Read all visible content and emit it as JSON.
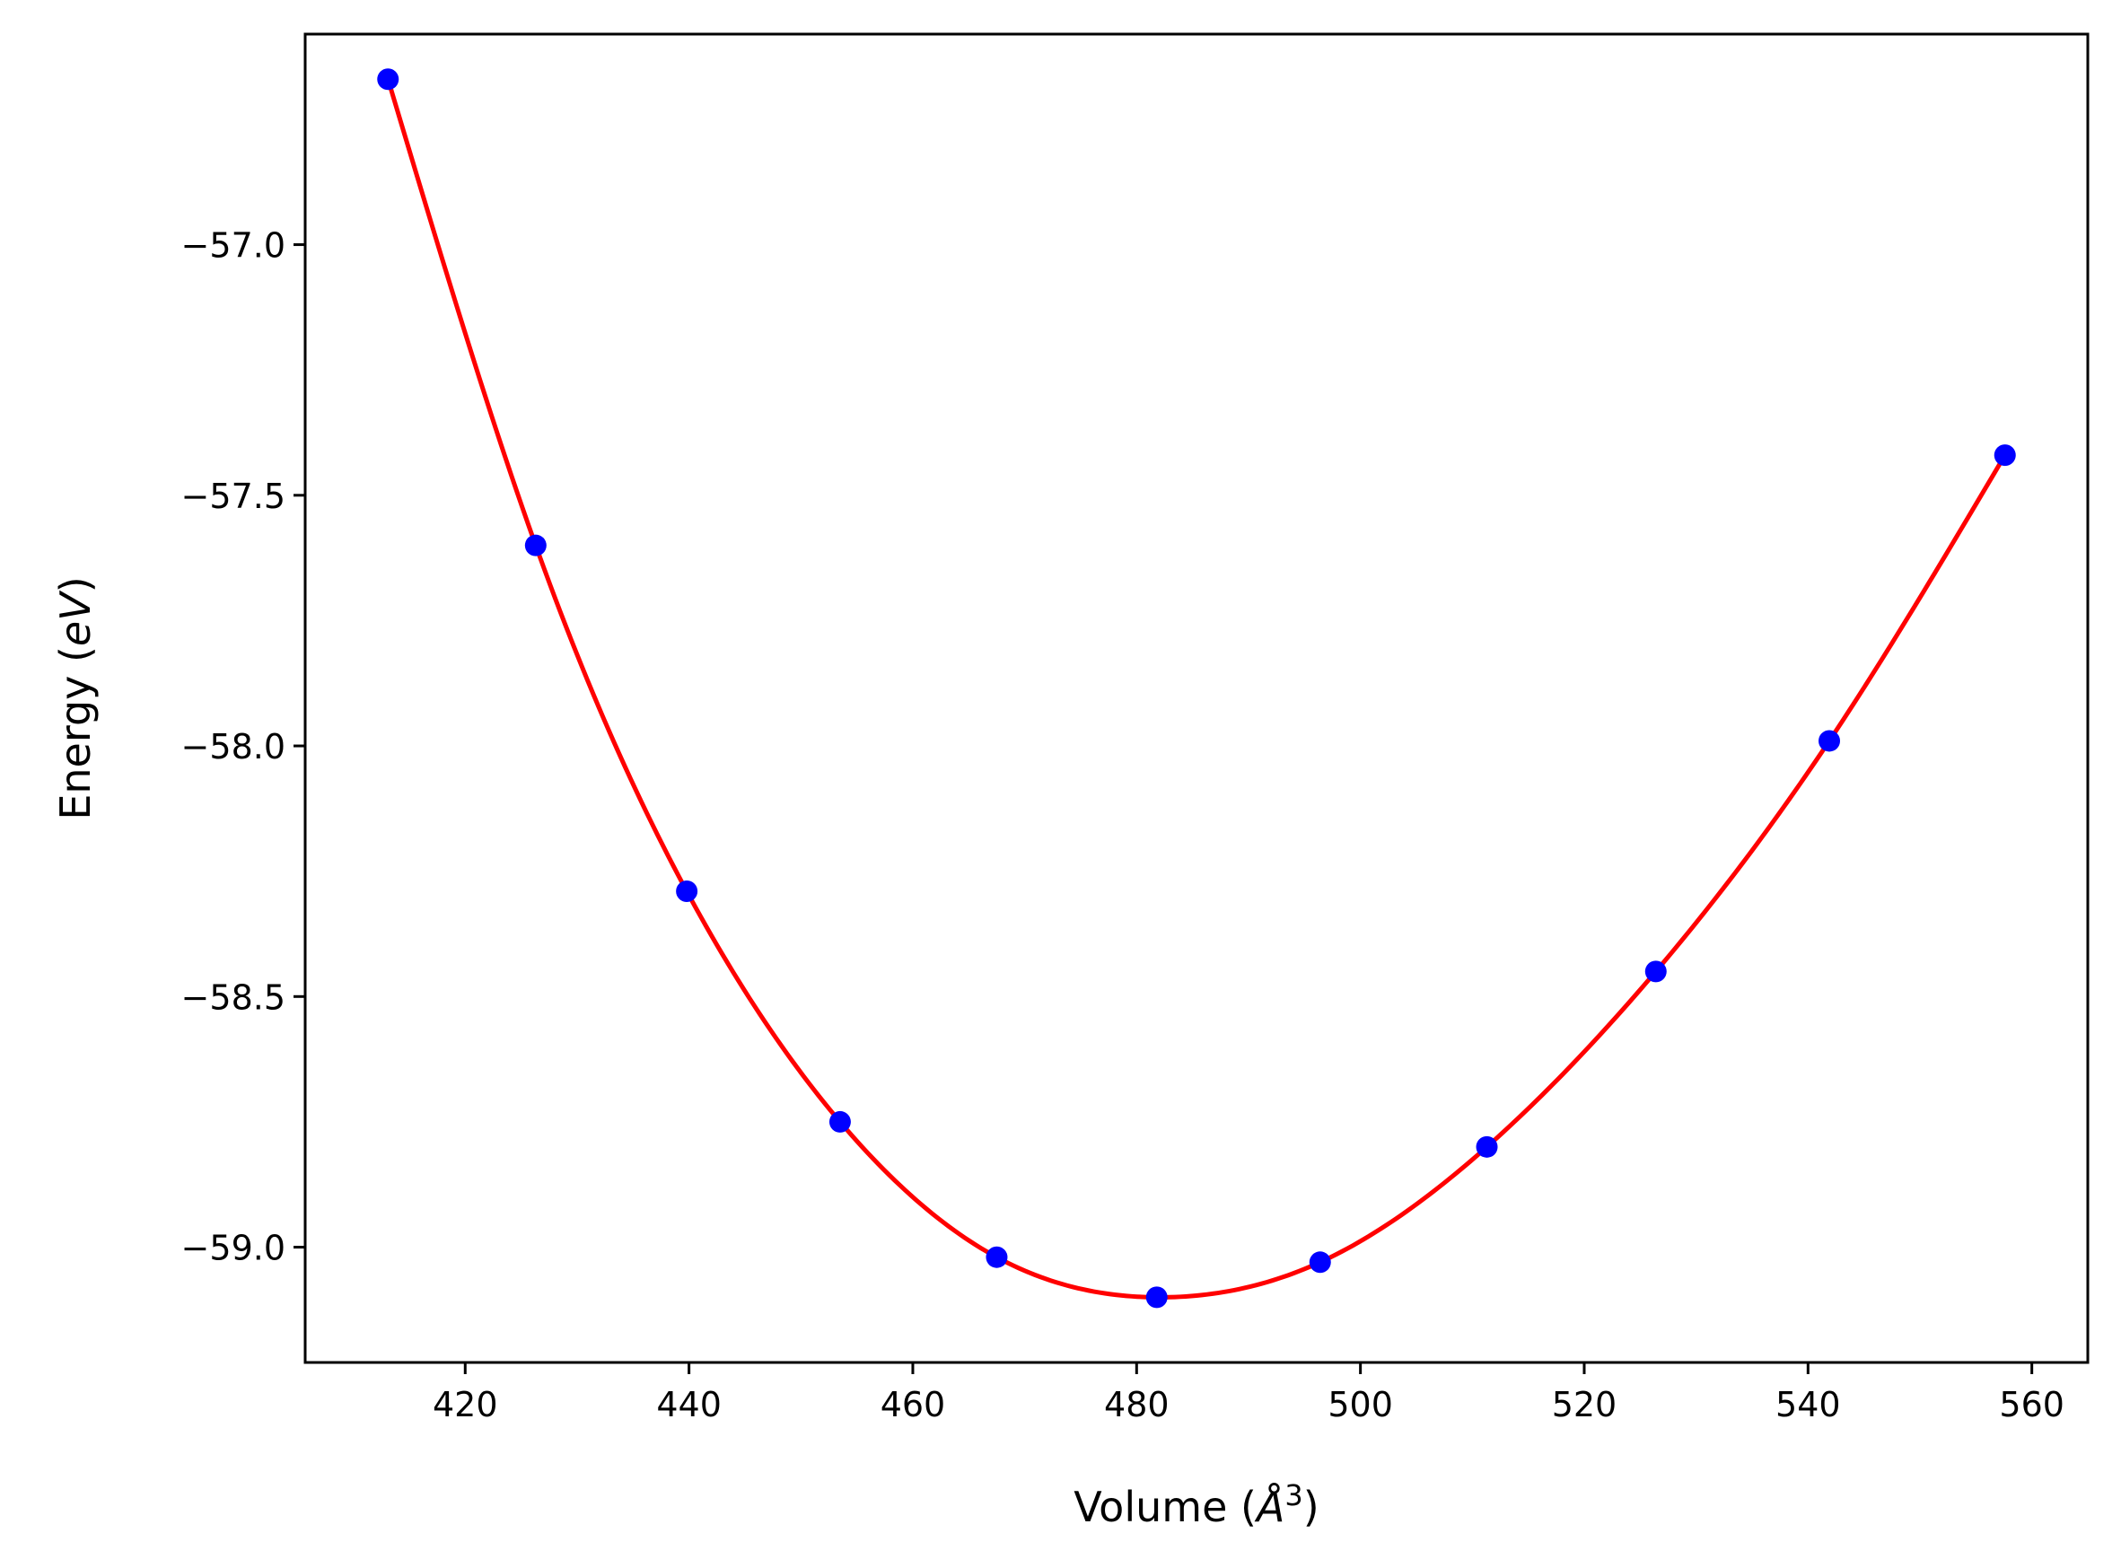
{
  "chart_data": {
    "type": "scatter",
    "title": "",
    "xlabel": {
      "prefix": "Volume (",
      "unit": "Å",
      "superscript": "3",
      "suffix": ")"
    },
    "ylabel": {
      "prefix": "Energy (",
      "unit": "eV",
      "suffix": ")"
    },
    "xlim": [
      405.7,
      565.0
    ],
    "ylim": [
      -59.23,
      -56.58
    ],
    "xticks": [
      420,
      440,
      460,
      480,
      500,
      520,
      540,
      560
    ],
    "xtick_labels": [
      "420",
      "440",
      "460",
      "480",
      "500",
      "520",
      "540",
      "560"
    ],
    "yticks": [
      -57.0,
      -57.5,
      -58.0,
      -58.5,
      -59.0
    ],
    "ytick_labels": [
      "−57.0",
      "−57.5",
      "−58.0",
      "−58.5",
      "−59.0"
    ],
    "grid": false,
    "legend": "none",
    "series": [
      {
        "kind": "points",
        "color": "#0000ff",
        "x": [
          413.1,
          426.3,
          439.8,
          453.5,
          467.5,
          481.8,
          496.4,
          511.3,
          526.4,
          541.9,
          557.6
        ],
        "y": [
          -56.67,
          -57.6,
          -58.29,
          -58.75,
          -59.02,
          -59.1,
          -59.03,
          -58.8,
          -58.45,
          -57.99,
          -57.42
        ]
      },
      {
        "kind": "fit-curve",
        "color": "#ff0000",
        "x": [
          413.1,
          426.3,
          439.8,
          453.5,
          467.5,
          481.8,
          496.4,
          511.3,
          526.4,
          541.9,
          557.6
        ],
        "y": [
          -56.67,
          -57.6,
          -58.29,
          -58.75,
          -59.02,
          -59.1,
          -59.03,
          -58.8,
          -58.45,
          -57.99,
          -57.42
        ]
      }
    ]
  }
}
